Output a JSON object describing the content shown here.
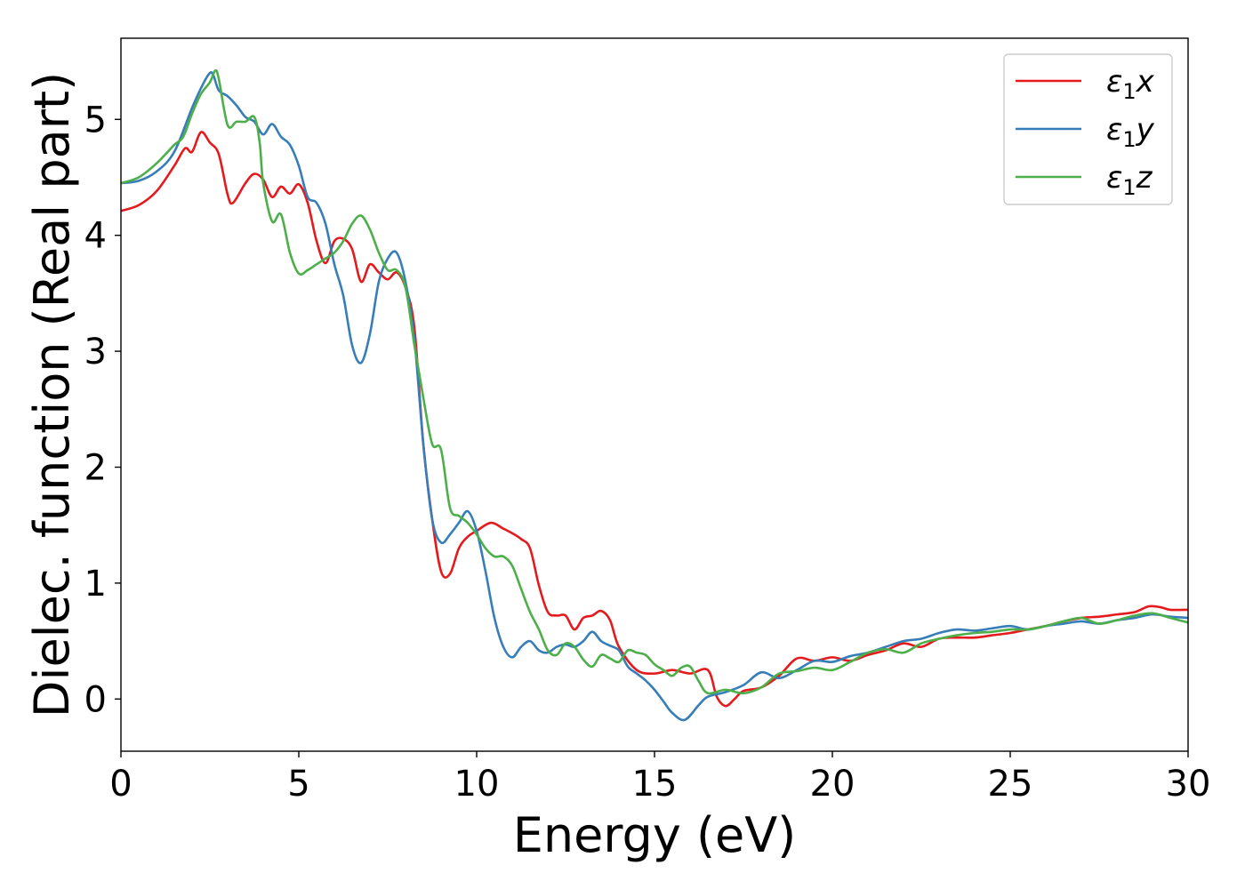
{
  "chart_data": {
    "type": "line",
    "xlabel": "Energy (eV)",
    "ylabel": "Dielec. function (Real part)",
    "xlim": [
      0,
      30
    ],
    "ylim": [
      -0.45,
      5.7
    ],
    "xticks": [
      0,
      5,
      10,
      15,
      20,
      25,
      30
    ],
    "yticks": [
      0,
      1,
      2,
      3,
      4,
      5
    ],
    "grid": false,
    "legend_position": "top-right",
    "series": [
      {
        "name": "ε1x",
        "legend": {
          "main": "ε",
          "sub": "1",
          "suffix": "x"
        },
        "color": "#e41a1c",
        "x": [
          0,
          0.5,
          1.0,
          1.5,
          1.8,
          2.0,
          2.25,
          2.5,
          2.75,
          3.0,
          3.15,
          3.5,
          3.75,
          4.0,
          4.25,
          4.5,
          4.75,
          5.0,
          5.25,
          5.5,
          5.75,
          6.0,
          6.25,
          6.5,
          6.75,
          7.0,
          7.25,
          7.5,
          7.75,
          8.0,
          8.25,
          8.5,
          8.75,
          9.0,
          9.25,
          9.5,
          9.75,
          10.0,
          10.4,
          10.75,
          11.0,
          11.25,
          11.5,
          11.75,
          12.0,
          12.25,
          12.5,
          12.75,
          13.0,
          13.25,
          13.5,
          13.75,
          14.0,
          14.5,
          15.0,
          15.5,
          16.0,
          16.5,
          16.75,
          17.0,
          17.25,
          17.5,
          18.0,
          18.5,
          19.0,
          19.5,
          20.0,
          20.5,
          21.0,
          21.5,
          22.0,
          22.5,
          23.0,
          23.5,
          24.0,
          24.5,
          25.0,
          25.5,
          26.0,
          26.5,
          27.0,
          27.5,
          28.0,
          28.5,
          28.9,
          29.25,
          29.5,
          30.0
        ],
        "y": [
          4.21,
          4.26,
          4.38,
          4.6,
          4.75,
          4.72,
          4.89,
          4.8,
          4.7,
          4.35,
          4.28,
          4.45,
          4.53,
          4.48,
          4.33,
          4.42,
          4.36,
          4.44,
          4.28,
          3.95,
          3.76,
          3.95,
          3.97,
          3.88,
          3.6,
          3.75,
          3.68,
          3.62,
          3.68,
          3.55,
          3.2,
          2.2,
          1.55,
          1.1,
          1.08,
          1.3,
          1.4,
          1.45,
          1.52,
          1.47,
          1.43,
          1.38,
          1.3,
          0.98,
          0.75,
          0.72,
          0.72,
          0.6,
          0.7,
          0.72,
          0.76,
          0.68,
          0.45,
          0.25,
          0.22,
          0.25,
          0.22,
          0.25,
          0.02,
          -0.06,
          0.0,
          0.07,
          0.1,
          0.2,
          0.35,
          0.33,
          0.36,
          0.33,
          0.38,
          0.42,
          0.48,
          0.45,
          0.52,
          0.53,
          0.53,
          0.55,
          0.57,
          0.6,
          0.63,
          0.67,
          0.7,
          0.71,
          0.73,
          0.75,
          0.8,
          0.79,
          0.77,
          0.77
        ]
      },
      {
        "name": "ε1y",
        "legend": {
          "main": "ε",
          "sub": "1",
          "suffix": "y"
        },
        "color": "#377eb8",
        "x": [
          0,
          0.5,
          1.0,
          1.5,
          2.0,
          2.3,
          2.5,
          2.6,
          2.75,
          3.0,
          3.25,
          3.5,
          3.75,
          4.0,
          4.25,
          4.5,
          4.75,
          5.0,
          5.25,
          5.5,
          5.75,
          6.0,
          6.25,
          6.5,
          6.75,
          7.0,
          7.25,
          7.5,
          7.75,
          8.0,
          8.25,
          8.5,
          8.75,
          9.0,
          9.25,
          9.5,
          9.75,
          10.0,
          10.25,
          10.5,
          10.75,
          11.0,
          11.25,
          11.5,
          11.75,
          12.0,
          12.25,
          12.5,
          12.75,
          13.0,
          13.25,
          13.5,
          13.75,
          14.0,
          14.25,
          14.5,
          14.75,
          15.0,
          15.25,
          15.5,
          15.85,
          16.25,
          16.5,
          17.0,
          17.5,
          18.0,
          18.5,
          19.0,
          19.5,
          20.0,
          20.5,
          21.0,
          21.5,
          22.0,
          22.5,
          23.0,
          23.5,
          24.0,
          24.5,
          25.0,
          25.5,
          26.0,
          26.5,
          27.0,
          27.5,
          28.0,
          28.5,
          29.0,
          29.5,
          30.0
        ],
        "y": [
          4.45,
          4.47,
          4.55,
          4.72,
          5.1,
          5.3,
          5.4,
          5.38,
          5.25,
          5.2,
          5.12,
          5.02,
          4.98,
          4.87,
          4.96,
          4.85,
          4.78,
          4.6,
          4.33,
          4.28,
          4.1,
          3.75,
          3.48,
          3.05,
          2.9,
          3.15,
          3.6,
          3.8,
          3.85,
          3.6,
          3.1,
          2.2,
          1.55,
          1.35,
          1.42,
          1.52,
          1.62,
          1.45,
          1.1,
          0.7,
          0.45,
          0.36,
          0.45,
          0.5,
          0.42,
          0.4,
          0.45,
          0.47,
          0.45,
          0.5,
          0.58,
          0.5,
          0.46,
          0.42,
          0.28,
          0.22,
          0.16,
          0.08,
          -0.02,
          -0.12,
          -0.18,
          -0.05,
          0.02,
          0.06,
          0.12,
          0.23,
          0.18,
          0.25,
          0.33,
          0.32,
          0.37,
          0.4,
          0.45,
          0.5,
          0.52,
          0.57,
          0.6,
          0.59,
          0.61,
          0.63,
          0.6,
          0.63,
          0.65,
          0.67,
          0.65,
          0.68,
          0.7,
          0.73,
          0.71,
          0.7
        ]
      },
      {
        "name": "ε1z",
        "legend": {
          "main": "ε",
          "sub": "1",
          "suffix": "z"
        },
        "color": "#4daf4a",
        "x": [
          0,
          0.5,
          1.0,
          1.5,
          1.75,
          2.0,
          2.25,
          2.5,
          2.65,
          2.75,
          3.0,
          3.25,
          3.5,
          3.75,
          3.9,
          4.0,
          4.25,
          4.5,
          4.75,
          5.0,
          5.25,
          5.5,
          5.75,
          6.0,
          6.25,
          6.5,
          6.75,
          7.0,
          7.25,
          7.5,
          7.75,
          8.0,
          8.25,
          8.5,
          8.75,
          9.0,
          9.25,
          9.5,
          9.75,
          10.0,
          10.25,
          10.5,
          10.75,
          11.0,
          11.25,
          11.5,
          11.75,
          12.0,
          12.25,
          12.5,
          12.75,
          13.0,
          13.25,
          13.5,
          13.75,
          14.0,
          14.25,
          14.5,
          14.75,
          15.0,
          15.25,
          15.5,
          15.75,
          16.0,
          16.25,
          16.5,
          17.0,
          17.5,
          18.0,
          18.5,
          19.0,
          19.5,
          20.0,
          20.5,
          21.0,
          21.5,
          22.0,
          22.5,
          23.0,
          23.5,
          24.0,
          24.5,
          25.0,
          25.5,
          26.0,
          26.5,
          27.0,
          27.5,
          28.0,
          28.5,
          29.0,
          29.5,
          30.0
        ],
        "y": [
          4.45,
          4.5,
          4.62,
          4.78,
          4.85,
          5.05,
          5.22,
          5.32,
          5.42,
          5.35,
          4.95,
          4.98,
          4.98,
          5.02,
          4.8,
          4.45,
          4.12,
          4.18,
          3.85,
          3.67,
          3.7,
          3.75,
          3.8,
          3.85,
          3.95,
          4.1,
          4.17,
          4.05,
          3.85,
          3.7,
          3.7,
          3.55,
          3.05,
          2.6,
          2.2,
          2.15,
          1.65,
          1.58,
          1.52,
          1.42,
          1.3,
          1.23,
          1.23,
          1.15,
          0.95,
          0.75,
          0.6,
          0.42,
          0.38,
          0.48,
          0.45,
          0.34,
          0.28,
          0.38,
          0.35,
          0.32,
          0.42,
          0.4,
          0.38,
          0.3,
          0.25,
          0.2,
          0.27,
          0.28,
          0.15,
          0.05,
          0.08,
          0.05,
          0.1,
          0.22,
          0.24,
          0.27,
          0.25,
          0.32,
          0.4,
          0.43,
          0.4,
          0.48,
          0.52,
          0.55,
          0.57,
          0.58,
          0.6,
          0.6,
          0.63,
          0.67,
          0.7,
          0.65,
          0.68,
          0.72,
          0.74,
          0.7,
          0.66
        ]
      }
    ]
  }
}
